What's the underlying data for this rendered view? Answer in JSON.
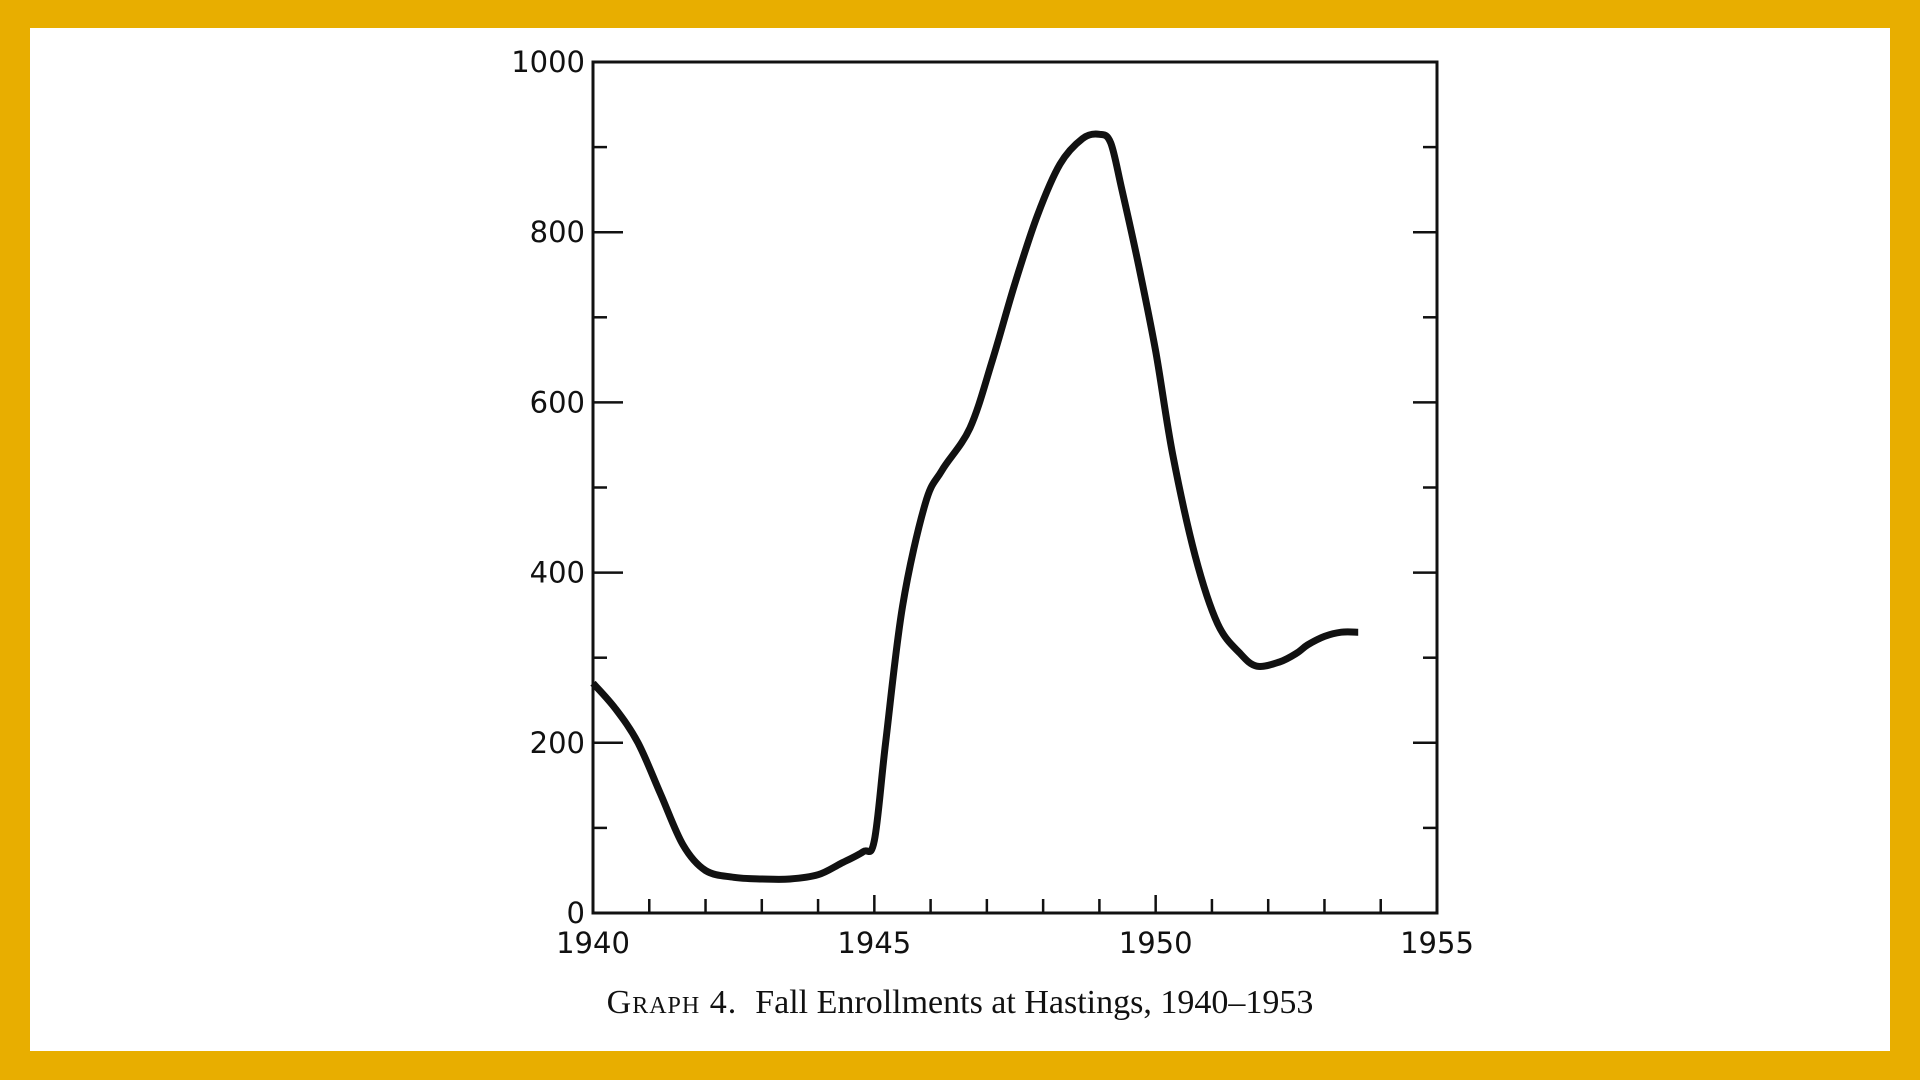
{
  "chart_data": {
    "type": "line",
    "caption_label": "Graph 4.",
    "title": "Fall Enrollments at Hastings, 1940–1953",
    "xlabel": "",
    "ylabel": "",
    "xlim": [
      1940,
      1955
    ],
    "ylim": [
      0,
      1000
    ],
    "x_major_ticks": [
      1940,
      1945,
      1950,
      1955
    ],
    "x_tick_labels": [
      "1940",
      "1945",
      "1950",
      "1955"
    ],
    "x_minor_step": 1,
    "y_major_ticks": [
      0,
      200,
      400,
      600,
      800,
      1000
    ],
    "y_tick_labels": [
      "0",
      "200",
      "400",
      "600",
      "800",
      "1000"
    ],
    "y_minor_step": 100,
    "grid": false,
    "line_color": "#111111",
    "series": [
      {
        "x": [
          1940.0,
          1940.4,
          1940.8,
          1941.2,
          1941.6,
          1942.0,
          1942.5,
          1943.0,
          1943.5,
          1944.0,
          1944.4,
          1944.8,
          1945.0,
          1945.2,
          1945.5,
          1945.9,
          1946.2,
          1946.7,
          1947.1,
          1947.5,
          1947.9,
          1948.3,
          1948.7,
          1949.0,
          1949.2,
          1949.4,
          1949.7,
          1950.0,
          1950.3,
          1950.7,
          1951.1,
          1951.5,
          1951.8,
          1952.2,
          1952.5,
          1952.7,
          1953.0,
          1953.3,
          1953.6
        ],
        "y": [
          270,
          240,
          200,
          140,
          80,
          50,
          42,
          40,
          40,
          45,
          58,
          72,
          85,
          200,
          360,
          480,
          520,
          570,
          650,
          740,
          820,
          880,
          910,
          915,
          905,
          850,
          760,
          660,
          540,
          420,
          340,
          305,
          290,
          295,
          305,
          315,
          325,
          330,
          330
        ]
      }
    ]
  }
}
